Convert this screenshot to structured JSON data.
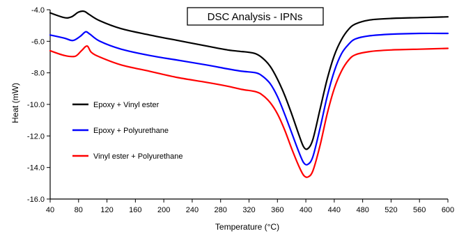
{
  "chart_data": {
    "type": "line",
    "title": "DSC Analysis - IPNs",
    "xlabel": "Temperature (°C)",
    "ylabel": "Heat (mW)",
    "xlim": [
      40,
      600
    ],
    "ylim": [
      -16.0,
      -4.0
    ],
    "x_ticks": [
      40,
      80,
      120,
      160,
      200,
      240,
      280,
      320,
      360,
      400,
      440,
      480,
      520,
      560,
      600
    ],
    "x_tick_labels": [
      "40",
      "80",
      "120",
      "160",
      "200",
      "240",
      "280",
      "320",
      "360",
      "400",
      "440",
      "480",
      "520",
      "560",
      "600"
    ],
    "y_ticks": [
      -4.0,
      -6.0,
      -8.0,
      -10.0,
      -12.0,
      -14.0,
      -16.0
    ],
    "y_tick_labels": [
      "-4.0",
      "-6.0",
      "-8.0",
      "-10.0",
      "-12.0",
      "-14.0",
      "-16.0"
    ],
    "grid": false,
    "legend_position": "left",
    "series": [
      {
        "name": "Epoxy + Vinyl ester",
        "color": "#000000",
        "points": [
          [
            40,
            -4.2
          ],
          [
            60,
            -4.5
          ],
          [
            70,
            -4.45
          ],
          [
            80,
            -4.15
          ],
          [
            88,
            -4.1
          ],
          [
            95,
            -4.3
          ],
          [
            110,
            -4.7
          ],
          [
            140,
            -5.2
          ],
          [
            180,
            -5.6
          ],
          [
            220,
            -5.95
          ],
          [
            260,
            -6.3
          ],
          [
            290,
            -6.55
          ],
          [
            310,
            -6.65
          ],
          [
            320,
            -6.7
          ],
          [
            330,
            -6.8
          ],
          [
            340,
            -7.1
          ],
          [
            350,
            -7.6
          ],
          [
            360,
            -8.4
          ],
          [
            370,
            -9.4
          ],
          [
            380,
            -10.6
          ],
          [
            390,
            -11.9
          ],
          [
            397,
            -12.7
          ],
          [
            403,
            -12.8
          ],
          [
            410,
            -12.2
          ],
          [
            420,
            -10.3
          ],
          [
            430,
            -8.4
          ],
          [
            440,
            -6.9
          ],
          [
            450,
            -5.9
          ],
          [
            460,
            -5.25
          ],
          [
            470,
            -4.9
          ],
          [
            490,
            -4.65
          ],
          [
            520,
            -4.55
          ],
          [
            560,
            -4.5
          ],
          [
            600,
            -4.45
          ]
        ]
      },
      {
        "name": "Epoxy + Polyurethane",
        "color": "#0000ff",
        "points": [
          [
            40,
            -5.6
          ],
          [
            60,
            -5.8
          ],
          [
            72,
            -5.95
          ],
          [
            82,
            -5.7
          ],
          [
            90,
            -5.4
          ],
          [
            96,
            -5.55
          ],
          [
            110,
            -6.0
          ],
          [
            140,
            -6.5
          ],
          [
            180,
            -6.9
          ],
          [
            220,
            -7.2
          ],
          [
            260,
            -7.5
          ],
          [
            290,
            -7.75
          ],
          [
            310,
            -7.9
          ],
          [
            330,
            -8.0
          ],
          [
            340,
            -8.25
          ],
          [
            350,
            -8.7
          ],
          [
            360,
            -9.5
          ],
          [
            370,
            -10.6
          ],
          [
            380,
            -11.8
          ],
          [
            390,
            -13.0
          ],
          [
            397,
            -13.7
          ],
          [
            403,
            -13.8
          ],
          [
            410,
            -13.3
          ],
          [
            420,
            -11.5
          ],
          [
            430,
            -9.5
          ],
          [
            440,
            -7.9
          ],
          [
            450,
            -6.8
          ],
          [
            460,
            -6.2
          ],
          [
            470,
            -5.85
          ],
          [
            490,
            -5.65
          ],
          [
            520,
            -5.55
          ],
          [
            560,
            -5.5
          ],
          [
            600,
            -5.5
          ]
        ]
      },
      {
        "name": "Vinyl ester + Polyurethane",
        "color": "#ff0000",
        "points": [
          [
            40,
            -6.6
          ],
          [
            60,
            -6.9
          ],
          [
            75,
            -6.95
          ],
          [
            84,
            -6.6
          ],
          [
            92,
            -6.3
          ],
          [
            98,
            -6.7
          ],
          [
            110,
            -7.0
          ],
          [
            140,
            -7.5
          ],
          [
            180,
            -7.9
          ],
          [
            220,
            -8.3
          ],
          [
            260,
            -8.6
          ],
          [
            290,
            -8.85
          ],
          [
            310,
            -9.05
          ],
          [
            330,
            -9.2
          ],
          [
            340,
            -9.45
          ],
          [
            350,
            -9.9
          ],
          [
            360,
            -10.6
          ],
          [
            370,
            -11.6
          ],
          [
            380,
            -12.8
          ],
          [
            390,
            -13.9
          ],
          [
            397,
            -14.5
          ],
          [
            403,
            -14.6
          ],
          [
            410,
            -14.2
          ],
          [
            420,
            -12.6
          ],
          [
            430,
            -10.6
          ],
          [
            440,
            -9.0
          ],
          [
            450,
            -7.9
          ],
          [
            460,
            -7.2
          ],
          [
            470,
            -6.85
          ],
          [
            490,
            -6.65
          ],
          [
            520,
            -6.55
          ],
          [
            560,
            -6.5
          ],
          [
            600,
            -6.45
          ]
        ]
      }
    ]
  }
}
